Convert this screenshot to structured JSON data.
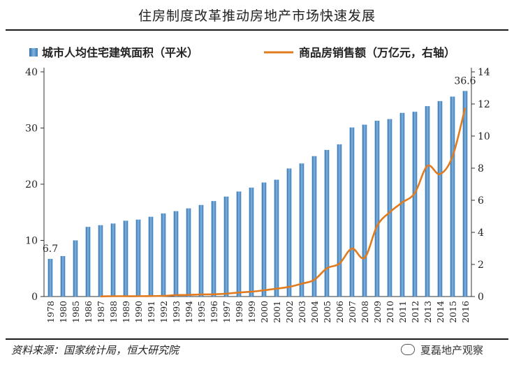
{
  "title": "住房制度改革推动房地产市场快速发展",
  "source": "资料来源：国家统计局，恒大研究院",
  "watermark": {
    "text": "夏磊地产观察",
    "icon": "wechat-icon"
  },
  "chart_data": {
    "type": "bar+line",
    "categories": [
      "1978",
      "1980",
      "1985",
      "1986",
      "1987",
      "1988",
      "1989",
      "1990",
      "1991",
      "1992",
      "1993",
      "1994",
      "1995",
      "1996",
      "1997",
      "1998",
      "1999",
      "2000",
      "2001",
      "2002",
      "2003",
      "2004",
      "2005",
      "2006",
      "2007",
      "2008",
      "2009",
      "2010",
      "2011",
      "2012",
      "2013",
      "2014",
      "2015",
      "2016"
    ],
    "series": [
      {
        "name": "城市人均住宅建筑面积（平米）",
        "type": "bar",
        "axis": "left",
        "color": "#4a8cc4",
        "values": [
          6.7,
          7.2,
          10.0,
          12.4,
          12.7,
          13.0,
          13.5,
          13.7,
          14.2,
          14.8,
          15.2,
          15.7,
          16.3,
          17.0,
          17.8,
          18.7,
          19.4,
          20.3,
          20.8,
          22.8,
          23.7,
          25.0,
          26.1,
          27.1,
          30.1,
          30.6,
          31.3,
          31.6,
          32.7,
          32.9,
          33.9,
          34.8,
          35.6,
          36.6
        ]
      },
      {
        "name": "商品房销售额（万亿元，右轴）",
        "type": "line",
        "axis": "right",
        "color": "#e07b1f",
        "values": [
          null,
          null,
          null,
          null,
          0.01,
          0.02,
          0.02,
          0.02,
          0.03,
          0.04,
          0.09,
          0.1,
          0.13,
          0.14,
          0.18,
          0.25,
          0.3,
          0.39,
          0.49,
          0.6,
          0.8,
          1.04,
          1.76,
          2.05,
          2.99,
          2.41,
          4.4,
          5.25,
          5.86,
          6.45,
          8.14,
          7.63,
          8.73,
          11.76
        ]
      }
    ],
    "data_labels": [
      {
        "index": 0,
        "text": "6.7"
      },
      {
        "index": 33,
        "text": "36.6"
      }
    ],
    "ylim_left": [
      0,
      40
    ],
    "yticks_left": [
      0,
      10,
      20,
      30,
      40
    ],
    "ylim_right": [
      0,
      14
    ],
    "yticks_right": [
      0,
      2,
      4,
      6,
      8,
      10,
      12,
      14
    ],
    "legend_position": "top",
    "grid": false
  }
}
